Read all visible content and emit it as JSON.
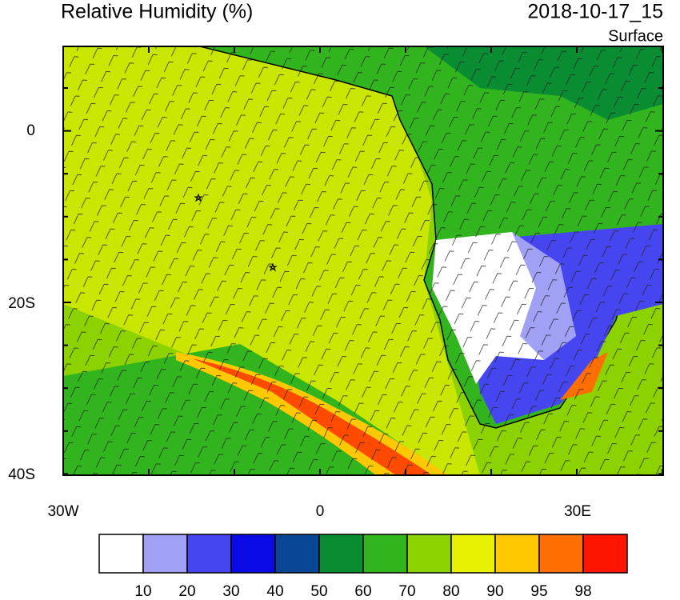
{
  "header": {
    "title": "Relative Humidity (%)",
    "time": "2018-10-17_15",
    "level": "Surface"
  },
  "map": {
    "lat_labels": [
      "0",
      "20S",
      "40S"
    ],
    "lon_labels": [
      "30W",
      "0",
      "30E"
    ]
  },
  "colorbar": {
    "colors": [
      "#ffffff",
      "#a0a0f5",
      "#4646f0",
      "#0a0ae6",
      "#0a4696",
      "#0a8c32",
      "#32b41e",
      "#8cd200",
      "#e6f000",
      "#ffc800",
      "#ff6e00",
      "#ff1400"
    ],
    "labels": [
      "10",
      "20",
      "30",
      "40",
      "50",
      "60",
      "70",
      "80",
      "90",
      "95",
      "98"
    ]
  }
}
